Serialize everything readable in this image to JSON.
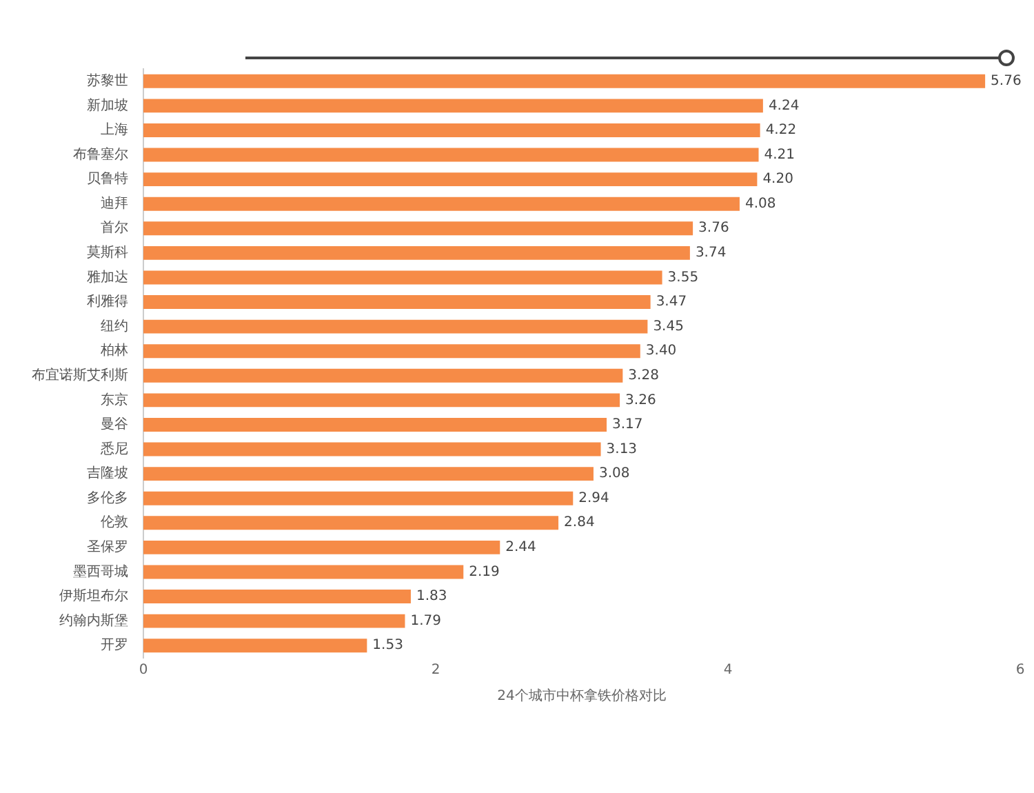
{
  "chart_data": {
    "type": "bar",
    "orientation": "horizontal",
    "xlabel": "24个城市中杯拿铁价格对比",
    "categories": [
      "苏黎世",
      "新加坡",
      "上海",
      "布鲁塞尔",
      "贝鲁特",
      "迪拜",
      "首尔",
      "莫斯科",
      "雅加达",
      "利雅得",
      "纽约",
      "柏林",
      "布宜诺斯艾利斯",
      "东京",
      "曼谷",
      "悉尼",
      "吉隆坡",
      "多伦多",
      "伦敦",
      "圣保罗",
      "墨西哥城",
      "伊斯坦布尔",
      "约翰内斯堡",
      "开罗"
    ],
    "values": [
      5.76,
      4.24,
      4.22,
      4.21,
      4.2,
      4.08,
      3.76,
      3.74,
      3.55,
      3.47,
      3.45,
      3.4,
      3.28,
      3.26,
      3.17,
      3.13,
      3.08,
      2.94,
      2.84,
      2.44,
      2.19,
      1.83,
      1.79,
      1.53
    ],
    "value_labels": [
      "5.76",
      "4.24",
      "4.22",
      "4.21",
      "4.20",
      "4.08",
      "3.76",
      "3.74",
      "3.55",
      "3.47",
      "3.45",
      "3.40",
      "3.28",
      "3.26",
      "3.17",
      "3.13",
      "3.08",
      "2.94",
      "2.84",
      "2.44",
      "2.19",
      "1.83",
      "1.79",
      "1.53"
    ],
    "color": "#f68b47",
    "xlim": [
      0,
      6
    ],
    "xticks": [
      0,
      2,
      4,
      6
    ],
    "grid": false,
    "legend": false
  }
}
